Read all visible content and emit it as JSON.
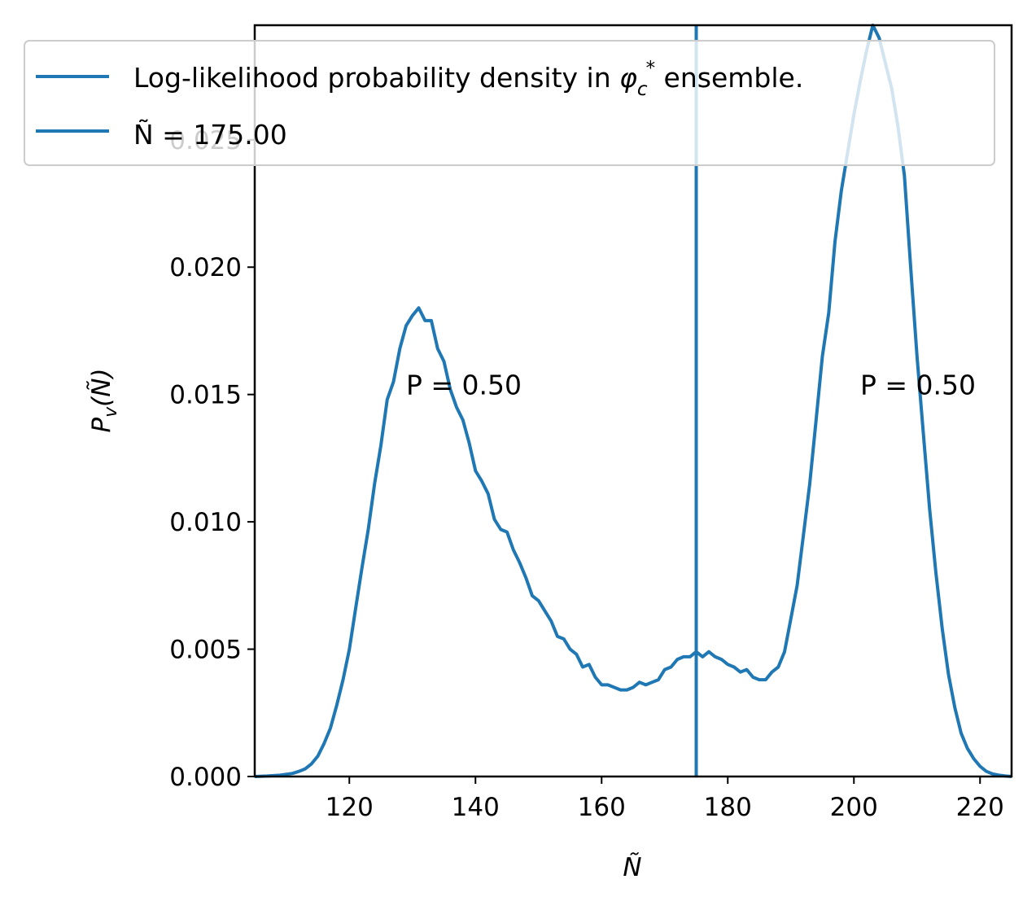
{
  "chart_data": {
    "type": "line",
    "xlabel": "Ñ",
    "ylabel": "P_v(Ñ)",
    "xlim": [
      105,
      225
    ],
    "ylim": [
      0,
      0.0295
    ],
    "x_ticks": [
      120,
      140,
      160,
      180,
      200,
      220
    ],
    "y_ticks": [
      0.0,
      0.005,
      0.01,
      0.015,
      0.02,
      0.025
    ],
    "x_tick_labels": [
      "120",
      "140",
      "160",
      "180",
      "200",
      "220"
    ],
    "y_tick_labels": [
      "0.000",
      "0.005",
      "0.010",
      "0.015",
      "0.020",
      "0.025"
    ],
    "grid": false,
    "legend_position": "upper-left",
    "colors": {
      "series": "#1f77b4"
    },
    "series": [
      {
        "name": "Log-likelihood probability density in φ_c* ensemble.",
        "x": [
          105,
          107,
          109,
          111,
          112,
          113,
          114,
          115,
          116,
          117,
          118,
          119,
          120,
          121,
          122,
          123,
          124,
          125,
          126,
          127,
          128,
          129,
          130,
          131,
          132,
          133,
          134,
          135,
          136,
          137,
          138,
          139,
          140,
          141,
          142,
          143,
          144,
          145,
          146,
          147,
          148,
          149,
          150,
          151,
          152,
          153,
          154,
          155,
          156,
          157,
          158,
          159,
          160,
          161,
          162,
          163,
          164,
          165,
          166,
          167,
          168,
          169,
          170,
          171,
          172,
          173,
          174,
          175,
          176,
          177,
          178,
          179,
          180,
          181,
          182,
          183,
          184,
          185,
          186,
          187,
          188,
          189,
          190,
          191,
          192,
          193,
          194,
          195,
          196,
          197,
          198,
          199,
          200,
          201,
          202,
          203,
          204,
          205,
          206,
          207,
          208,
          209,
          210,
          211,
          212,
          213,
          214,
          215,
          216,
          217,
          218,
          219,
          220,
          221,
          222,
          223,
          224,
          225
        ],
        "y": [
          0.0,
          2e-05,
          5e-05,
          0.00012,
          0.0002,
          0.0003,
          0.0005,
          0.0008,
          0.0013,
          0.0019,
          0.0028,
          0.0038,
          0.005,
          0.0066,
          0.0082,
          0.0097,
          0.0115,
          0.013,
          0.0148,
          0.0155,
          0.0168,
          0.0177,
          0.0181,
          0.0184,
          0.0179,
          0.0179,
          0.0168,
          0.0163,
          0.0152,
          0.0145,
          0.014,
          0.0131,
          0.012,
          0.0116,
          0.0111,
          0.0101,
          0.0097,
          0.0096,
          0.0089,
          0.0084,
          0.0078,
          0.0071,
          0.0069,
          0.0065,
          0.0061,
          0.0055,
          0.0054,
          0.005,
          0.0048,
          0.0043,
          0.0044,
          0.0039,
          0.0036,
          0.0036,
          0.0035,
          0.0034,
          0.0034,
          0.0035,
          0.0037,
          0.0036,
          0.0037,
          0.0038,
          0.0042,
          0.0043,
          0.0046,
          0.0047,
          0.0047,
          0.0049,
          0.0047,
          0.0049,
          0.0047,
          0.0046,
          0.0044,
          0.0043,
          0.0041,
          0.0042,
          0.0039,
          0.0038,
          0.0038,
          0.0041,
          0.0043,
          0.0049,
          0.0062,
          0.0075,
          0.0095,
          0.0115,
          0.014,
          0.0165,
          0.0182,
          0.021,
          0.023,
          0.0245,
          0.026,
          0.0273,
          0.0285,
          0.0295,
          0.029,
          0.028,
          0.027,
          0.0255,
          0.0236,
          0.02,
          0.0165,
          0.0135,
          0.0105,
          0.008,
          0.0058,
          0.004,
          0.0027,
          0.0017,
          0.0011,
          0.0007,
          0.0004,
          0.0002,
          0.0001,
          5e-05,
          2e-05,
          0.0
        ]
      },
      {
        "name": "Ñ = 175.00",
        "type": "vline",
        "x": 175.0
      }
    ],
    "annotations": [
      {
        "text": "P = 0.50",
        "x": 129,
        "y": 0.015
      },
      {
        "text": "P = 0.50",
        "x": 201,
        "y": 0.015
      }
    ]
  },
  "legend": {
    "entries": [
      {
        "text": "Log-likelihood probability density in ",
        "symbol": "φ",
        "sub": "c",
        "sup": "*",
        "after": " ensemble."
      },
      {
        "text": "Ñ = 175.00"
      }
    ]
  }
}
